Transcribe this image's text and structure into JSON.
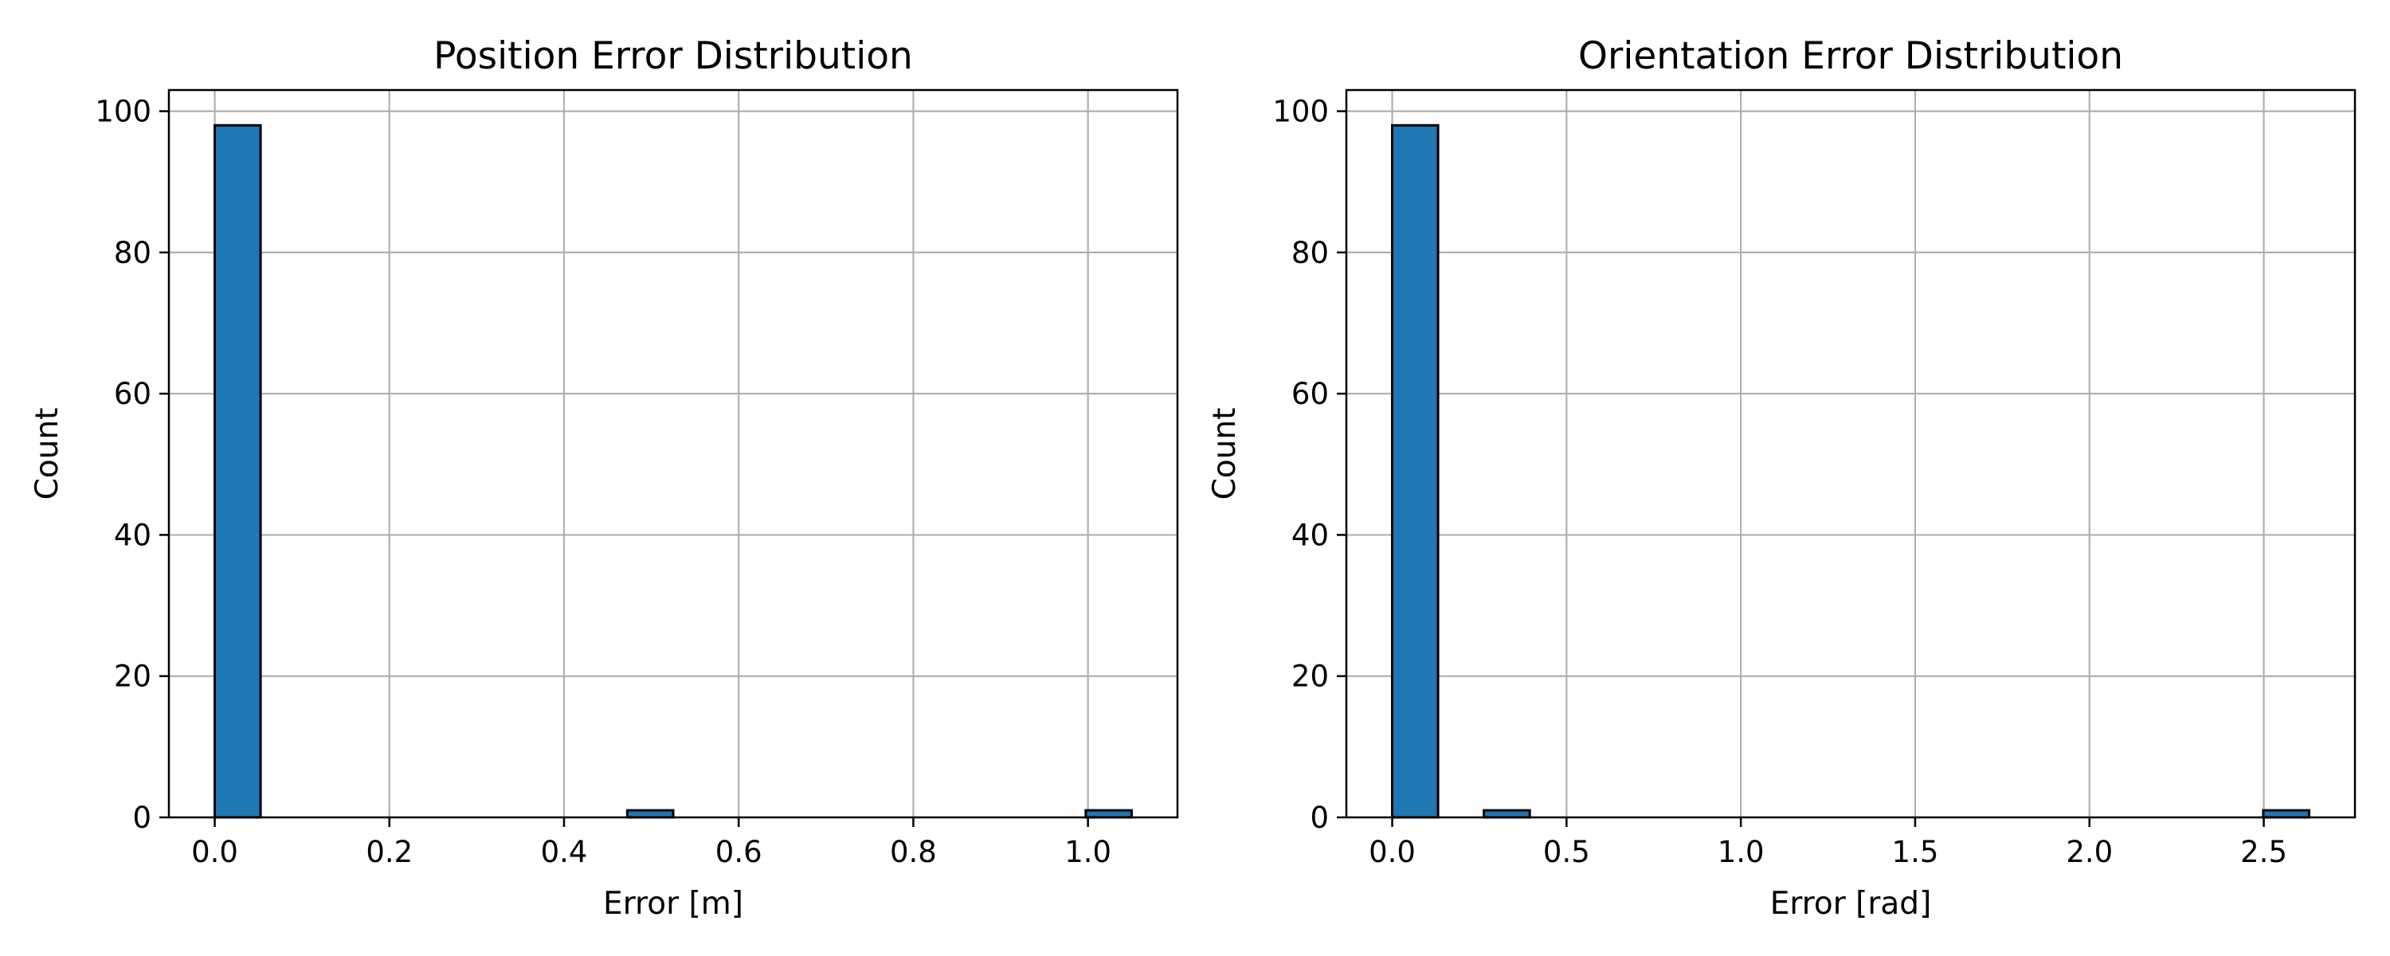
{
  "chart_data": [
    {
      "type": "bar",
      "title": "Position Error Distribution",
      "xlabel": "Error [m]",
      "ylabel": "Count",
      "xlim": [
        -0.0525,
        1.1025
      ],
      "ylim": [
        0,
        103
      ],
      "xticks": [
        0.0,
        0.2,
        0.4,
        0.6,
        0.8,
        1.0
      ],
      "xtick_labels": [
        "0.0",
        "0.2",
        "0.4",
        "0.6",
        "0.8",
        "1.0"
      ],
      "yticks": [
        0,
        20,
        40,
        60,
        80,
        100
      ],
      "ytick_labels": [
        "0",
        "20",
        "40",
        "60",
        "80",
        "100"
      ],
      "grid": true,
      "bar_color": "#1f77b4",
      "edge_color": "#000000",
      "bins": [
        {
          "x0": 0.0,
          "x1": 0.0525,
          "count": 98
        },
        {
          "x0": 0.0525,
          "x1": 0.105,
          "count": 0
        },
        {
          "x0": 0.105,
          "x1": 0.1575,
          "count": 0
        },
        {
          "x0": 0.1575,
          "x1": 0.21,
          "count": 0
        },
        {
          "x0": 0.21,
          "x1": 0.2625,
          "count": 0
        },
        {
          "x0": 0.2625,
          "x1": 0.315,
          "count": 0
        },
        {
          "x0": 0.315,
          "x1": 0.3675,
          "count": 0
        },
        {
          "x0": 0.3675,
          "x1": 0.42,
          "count": 0
        },
        {
          "x0": 0.42,
          "x1": 0.4725,
          "count": 0
        },
        {
          "x0": 0.4725,
          "x1": 0.525,
          "count": 1
        },
        {
          "x0": 0.525,
          "x1": 0.5775,
          "count": 0
        },
        {
          "x0": 0.5775,
          "x1": 0.63,
          "count": 0
        },
        {
          "x0": 0.63,
          "x1": 0.6825,
          "count": 0
        },
        {
          "x0": 0.6825,
          "x1": 0.735,
          "count": 0
        },
        {
          "x0": 0.735,
          "x1": 0.7875,
          "count": 0
        },
        {
          "x0": 0.7875,
          "x1": 0.84,
          "count": 0
        },
        {
          "x0": 0.84,
          "x1": 0.8925,
          "count": 0
        },
        {
          "x0": 0.8925,
          "x1": 0.945,
          "count": 0
        },
        {
          "x0": 0.945,
          "x1": 0.9975,
          "count": 0
        },
        {
          "x0": 0.9975,
          "x1": 1.05,
          "count": 1
        }
      ]
    },
    {
      "type": "bar",
      "title": "Orientation Error Distribution",
      "xlabel": "Error [rad]",
      "ylabel": "Count",
      "xlim": [
        -0.1315,
        2.7615
      ],
      "ylim": [
        0,
        103
      ],
      "xticks": [
        0.0,
        0.5,
        1.0,
        1.5,
        2.0,
        2.5
      ],
      "xtick_labels": [
        "0.0",
        "0.5",
        "1.0",
        "1.5",
        "2.0",
        "2.5"
      ],
      "yticks": [
        0,
        20,
        40,
        60,
        80,
        100
      ],
      "ytick_labels": [
        "0",
        "20",
        "40",
        "60",
        "80",
        "100"
      ],
      "grid": true,
      "bar_color": "#1f77b4",
      "edge_color": "#000000",
      "bins": [
        {
          "x0": 0.0,
          "x1": 0.1315,
          "count": 98
        },
        {
          "x0": 0.1315,
          "x1": 0.263,
          "count": 0
        },
        {
          "x0": 0.263,
          "x1": 0.3945,
          "count": 1
        },
        {
          "x0": 0.3945,
          "x1": 0.526,
          "count": 0
        },
        {
          "x0": 0.526,
          "x1": 0.6575,
          "count": 0
        },
        {
          "x0": 0.6575,
          "x1": 0.789,
          "count": 0
        },
        {
          "x0": 0.789,
          "x1": 0.9205,
          "count": 0
        },
        {
          "x0": 0.9205,
          "x1": 1.052,
          "count": 0
        },
        {
          "x0": 1.052,
          "x1": 1.1835,
          "count": 0
        },
        {
          "x0": 1.1835,
          "x1": 1.315,
          "count": 0
        },
        {
          "x0": 1.315,
          "x1": 1.4465,
          "count": 0
        },
        {
          "x0": 1.4465,
          "x1": 1.578,
          "count": 0
        },
        {
          "x0": 1.578,
          "x1": 1.7095,
          "count": 0
        },
        {
          "x0": 1.7095,
          "x1": 1.841,
          "count": 0
        },
        {
          "x0": 1.841,
          "x1": 1.9725,
          "count": 0
        },
        {
          "x0": 1.9725,
          "x1": 2.104,
          "count": 0
        },
        {
          "x0": 2.104,
          "x1": 2.2355,
          "count": 0
        },
        {
          "x0": 2.2355,
          "x1": 2.367,
          "count": 0
        },
        {
          "x0": 2.367,
          "x1": 2.4985,
          "count": 0
        },
        {
          "x0": 2.4985,
          "x1": 2.63,
          "count": 1
        }
      ]
    }
  ]
}
